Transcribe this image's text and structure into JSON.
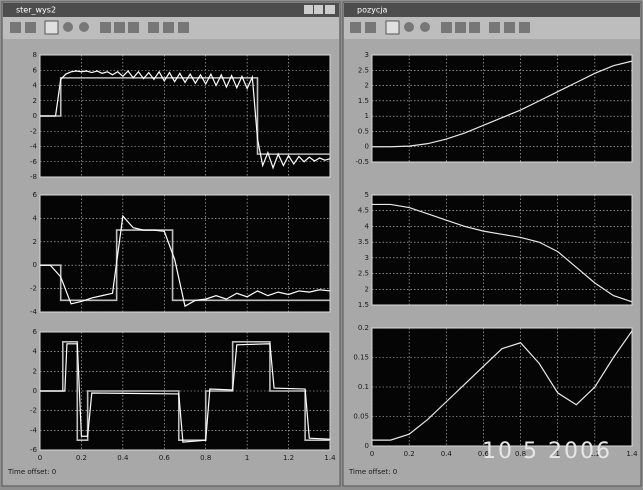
{
  "windows": [
    {
      "title": "ster_wys2",
      "status": "Time offset: 0"
    },
    {
      "title": "pozycja",
      "status": "Time offset: 0"
    }
  ],
  "photo_date": "10 5 2006",
  "chart_data": [
    {
      "type": "line",
      "xlim": [
        0,
        1.4
      ],
      "xticks": [
        0,
        0.2,
        0.4,
        0.6,
        0.8,
        1,
        1.2,
        1.4
      ],
      "ylim": [
        -8,
        8
      ],
      "yticks": [
        -8,
        -6,
        -4,
        -2,
        0,
        2,
        4,
        6,
        8
      ],
      "grid": true,
      "series": [
        {
          "color": "#bdbdbd",
          "x": [
            0,
            0.1,
            0.1,
            1.05,
            1.05,
            1.4
          ],
          "values": [
            0,
            0,
            5,
            5,
            -5,
            -5
          ]
        },
        {
          "color": "#ffffff",
          "x": [
            0,
            0.025,
            0.05,
            0.075,
            0.1,
            0.125,
            0.15,
            0.175,
            0.2,
            0.225,
            0.25,
            0.275,
            0.3,
            0.325,
            0.35,
            0.375,
            0.4,
            0.425,
            0.45,
            0.475,
            0.5,
            0.525,
            0.55,
            0.575,
            0.6,
            0.625,
            0.65,
            0.675,
            0.7,
            0.725,
            0.75,
            0.775,
            0.8,
            0.825,
            0.85,
            0.875,
            0.9,
            0.925,
            0.95,
            0.975,
            1,
            1.025,
            1.05,
            1.075,
            1.1,
            1.125,
            1.15,
            1.175,
            1.2,
            1.225,
            1.25,
            1.275,
            1.3,
            1.325,
            1.35,
            1.375,
            1.4
          ],
          "values": [
            0,
            0,
            0,
            0,
            4.8,
            5.5,
            5.8,
            5.9,
            5.8,
            5.9,
            5.7,
            5.9,
            5.6,
            5.8,
            5.4,
            5.8,
            5.2,
            5.9,
            5,
            5.8,
            4.9,
            5.7,
            4.8,
            5.8,
            4.6,
            5.7,
            4.5,
            5.6,
            4.4,
            5.5,
            4.3,
            5.4,
            4.2,
            5.5,
            4,
            5.4,
            3.8,
            5.3,
            3.7,
            5.2,
            3.6,
            5.1,
            -3,
            -6.5,
            -4.8,
            -6.8,
            -5,
            -6.5,
            -5.2,
            -6.3,
            -5.3,
            -6,
            -5.4,
            -5.9,
            -5.5,
            -5.8,
            -5.6
          ]
        }
      ]
    },
    {
      "type": "line",
      "xlim": [
        0,
        1.4
      ],
      "xticks": [
        0,
        0.2,
        0.4,
        0.6,
        0.8,
        1,
        1.2,
        1.4
      ],
      "ylim": [
        -4,
        6
      ],
      "yticks": [
        -4,
        -2,
        0,
        2,
        4,
        6
      ],
      "grid": true,
      "series": [
        {
          "color": "#bdbdbd",
          "x": [
            0,
            0.1,
            0.1,
            0.37,
            0.37,
            0.64,
            0.64,
            1.4
          ],
          "values": [
            0,
            0,
            -3,
            -3,
            3,
            3,
            -3,
            -3
          ]
        },
        {
          "color": "#ffffff",
          "x": [
            0,
            0.05,
            0.1,
            0.15,
            0.2,
            0.25,
            0.3,
            0.35,
            0.4,
            0.45,
            0.5,
            0.55,
            0.6,
            0.65,
            0.7,
            0.75,
            0.8,
            0.85,
            0.9,
            0.95,
            1,
            1.05,
            1.1,
            1.15,
            1.2,
            1.25,
            1.3,
            1.35,
            1.4
          ],
          "values": [
            0,
            0,
            -1,
            -3.3,
            -3.1,
            -2.8,
            -2.6,
            -2.4,
            4.2,
            3.2,
            3,
            3,
            2.9,
            0.5,
            -3.5,
            -3,
            -2.9,
            -2.6,
            -2.9,
            -2.4,
            -2.7,
            -2.2,
            -2.6,
            -2.3,
            -2.5,
            -2.2,
            -2.3,
            -2.1,
            -2.2
          ]
        }
      ]
    },
    {
      "type": "line",
      "xlim": [
        0,
        1.4
      ],
      "xticks": [
        0,
        0.2,
        0.4,
        0.6,
        0.8,
        1,
        1.2,
        1.4
      ],
      "ylim": [
        -6,
        6
      ],
      "yticks": [
        -6,
        -4,
        -2,
        0,
        2,
        4,
        6
      ],
      "grid": true,
      "series": [
        {
          "color": "#bdbdbd",
          "x": [
            0,
            0.11,
            0.11,
            0.18,
            0.18,
            0.23,
            0.23,
            0.67,
            0.67,
            0.8,
            0.8,
            0.93,
            0.93,
            1.11,
            1.11,
            1.28,
            1.28,
            1.4
          ],
          "values": [
            0,
            0,
            5,
            5,
            -5,
            -5,
            0,
            0,
            -5,
            -5,
            0,
            0,
            5,
            5,
            0,
            0,
            -5,
            -5
          ]
        },
        {
          "color": "#ffffff",
          "x": [
            0,
            0.12,
            0.13,
            0.18,
            0.2,
            0.23,
            0.25,
            0.67,
            0.69,
            0.8,
            0.82,
            0.93,
            0.95,
            1.11,
            1.13,
            1.28,
            1.3,
            1.4
          ],
          "values": [
            0,
            0,
            4.8,
            4.8,
            -4.6,
            -4.6,
            -0.2,
            -0.3,
            -5.2,
            -5,
            0.2,
            0.1,
            4.7,
            4.8,
            0.3,
            0.2,
            -4.8,
            -4.9
          ]
        }
      ]
    },
    {
      "type": "line",
      "xlim": [
        0,
        1.4
      ],
      "xticks": [
        0,
        0.2,
        0.4,
        0.6,
        0.8,
        1,
        1.2,
        1.4
      ],
      "ylim": [
        -0.5,
        3
      ],
      "yticks": [
        -0.5,
        0,
        0.5,
        1,
        1.5,
        2,
        2.5,
        3
      ],
      "grid": true,
      "series": [
        {
          "color": "#e8e8e8",
          "x": [
            0,
            0.1,
            0.2,
            0.3,
            0.4,
            0.5,
            0.6,
            0.7,
            0.8,
            0.9,
            1,
            1.1,
            1.2,
            1.3,
            1.4
          ],
          "values": [
            0,
            0,
            0.02,
            0.1,
            0.25,
            0.45,
            0.7,
            0.95,
            1.2,
            1.5,
            1.8,
            2.1,
            2.4,
            2.65,
            2.8
          ]
        }
      ]
    },
    {
      "type": "line",
      "xlim": [
        0,
        1.4
      ],
      "xticks": [
        0,
        0.2,
        0.4,
        0.6,
        0.8,
        1,
        1.2,
        1.4
      ],
      "ylim": [
        1.5,
        5
      ],
      "yticks": [
        1.5,
        2,
        2.5,
        3,
        3.5,
        4,
        4.5,
        5
      ],
      "grid": true,
      "series": [
        {
          "color": "#e8e8e8",
          "x": [
            0,
            0.1,
            0.2,
            0.3,
            0.4,
            0.5,
            0.6,
            0.7,
            0.8,
            0.9,
            1,
            1.1,
            1.2,
            1.3,
            1.4
          ],
          "values": [
            4.7,
            4.7,
            4.6,
            4.4,
            4.2,
            4,
            3.85,
            3.75,
            3.65,
            3.5,
            3.2,
            2.7,
            2.2,
            1.8,
            1.6
          ]
        }
      ]
    },
    {
      "type": "line",
      "xlim": [
        0,
        1.4
      ],
      "xticks": [
        0,
        0.2,
        0.4,
        0.6,
        0.8,
        1,
        1.2,
        1.4
      ],
      "ylim": [
        0,
        0.2
      ],
      "yticks": [
        0,
        0.05,
        0.1,
        0.15,
        0.2
      ],
      "grid": true,
      "series": [
        {
          "color": "#e8e8e8",
          "x": [
            0,
            0.1,
            0.2,
            0.3,
            0.4,
            0.5,
            0.6,
            0.7,
            0.8,
            0.9,
            1,
            1.1,
            1.2,
            1.3,
            1.4
          ],
          "values": [
            0.01,
            0.01,
            0.02,
            0.045,
            0.075,
            0.105,
            0.135,
            0.165,
            0.175,
            0.14,
            0.09,
            0.07,
            0.1,
            0.15,
            0.195
          ]
        }
      ]
    }
  ]
}
